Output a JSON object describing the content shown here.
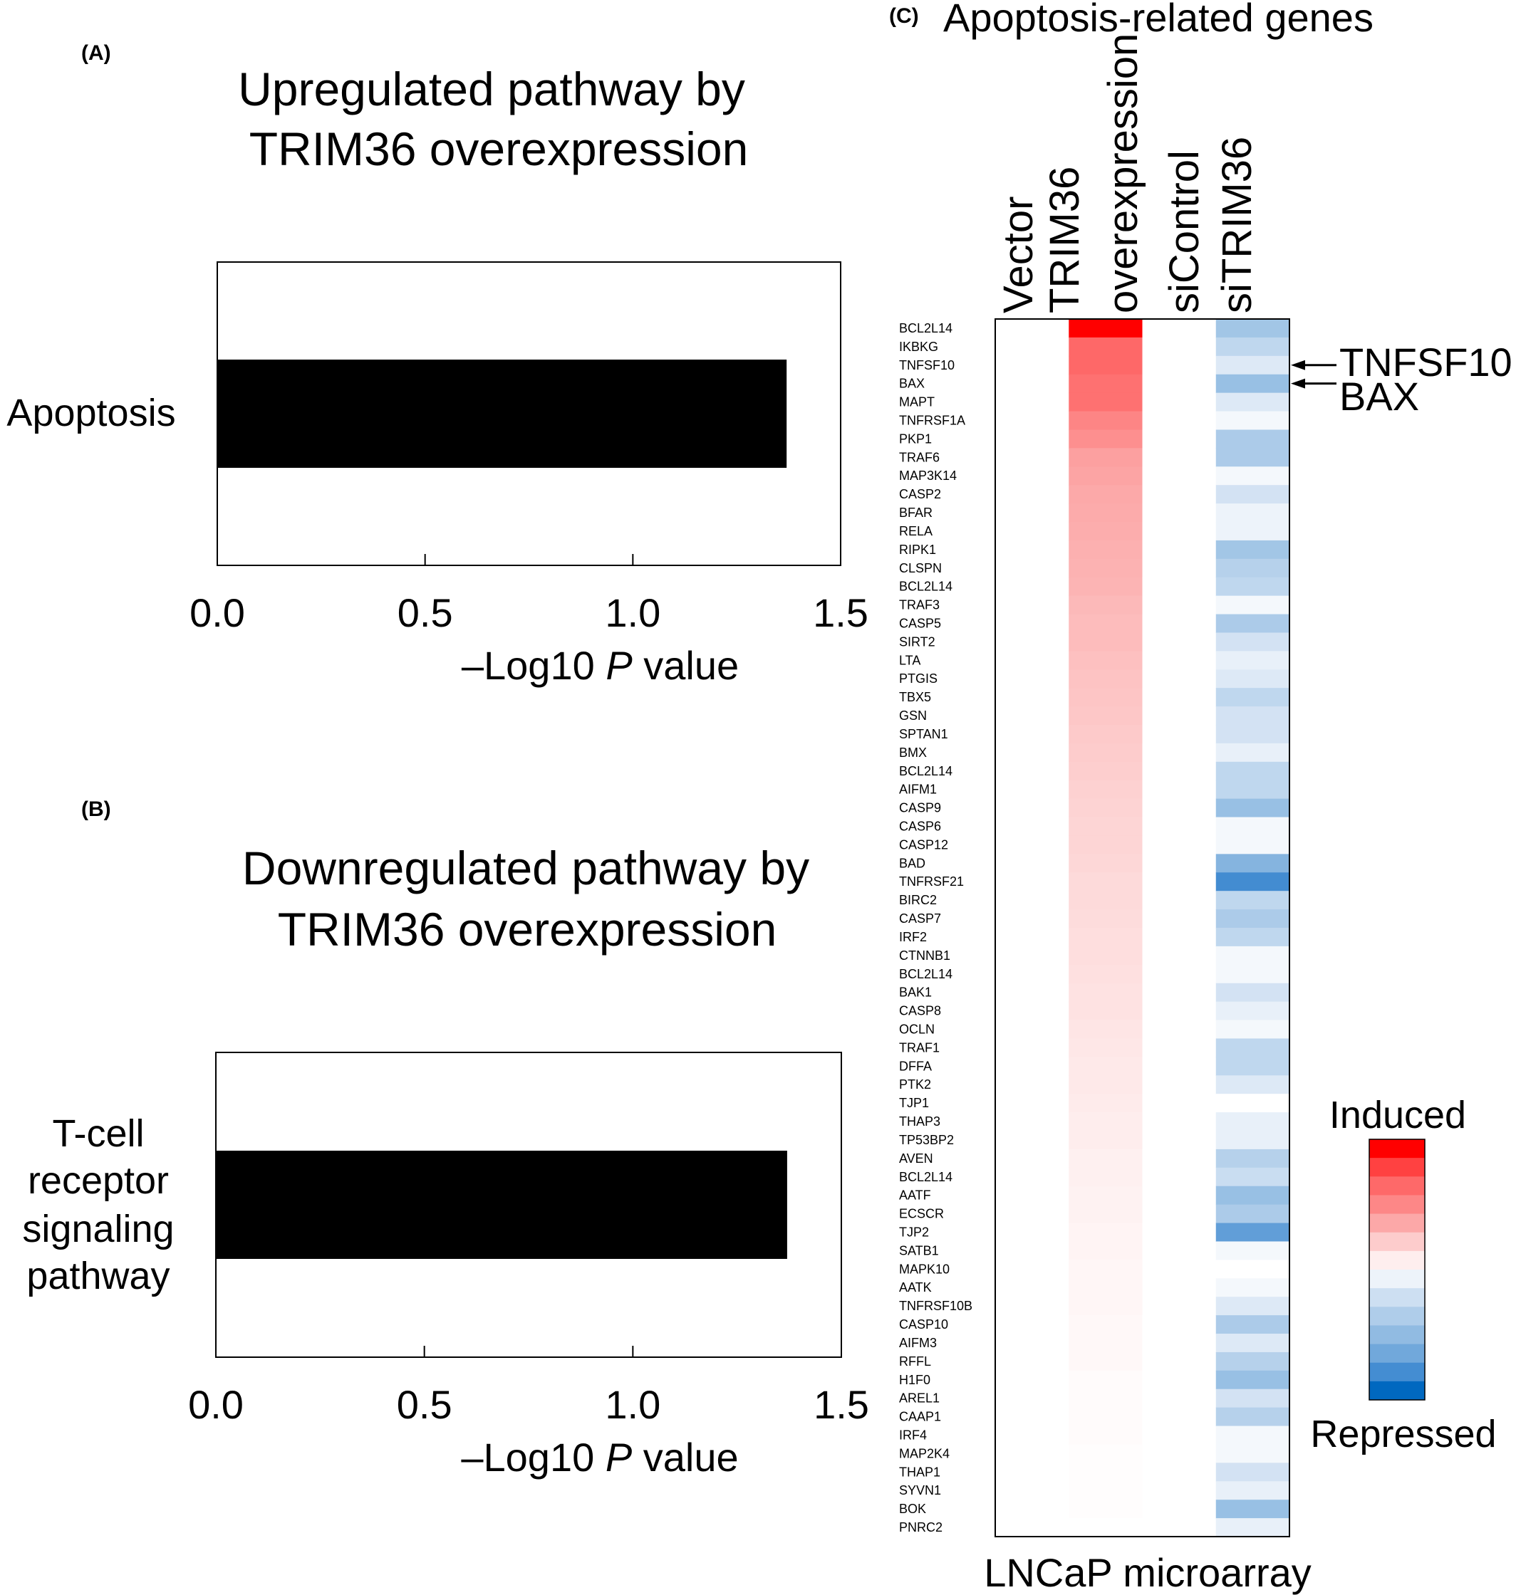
{
  "panels": {
    "A": {
      "letter": "(A)",
      "title_lines": [
        "Upregulated pathway by",
        "TRIM36 overexpression"
      ],
      "category_lines": [
        "Apoptosis"
      ]
    },
    "B": {
      "letter": "(B)",
      "title_lines": [
        "Downregulated pathway by",
        "TRIM36 overexpression"
      ],
      "category_lines": [
        "T-cell",
        "receptor",
        "signaling",
        "pathway"
      ]
    },
    "C": {
      "letter": "(C)",
      "title": "Apoptosis-related  genes",
      "footer": "LNCaP microarray",
      "annotations": [
        {
          "label": "TNFSF10",
          "gene_index": 2
        },
        {
          "label": "BAX",
          "gene_index": 3
        }
      ],
      "legend": {
        "top": "Induced",
        "bottom": "Repressed"
      }
    }
  },
  "xlabel_parts": {
    "prefix": "–Log10 ",
    "italic": "P",
    "suffix": " value"
  },
  "chart_data": [
    {
      "type": "bar",
      "orientation": "horizontal",
      "panel": "A",
      "categories": [
        "Apoptosis"
      ],
      "values": [
        1.37
      ],
      "xlabel": "–Log10 P value",
      "xlim": [
        0,
        1.5
      ],
      "xticks": [
        "0.0",
        "0.5",
        "1.0",
        "1.5"
      ],
      "bar_color": "#000000",
      "grid": false
    },
    {
      "type": "bar",
      "orientation": "horizontal",
      "panel": "B",
      "categories": [
        "T-cell receptor signaling pathway"
      ],
      "values": [
        1.37
      ],
      "xlabel": "–Log10 P value",
      "xlim": [
        0,
        1.5
      ],
      "xticks": [
        "0.0",
        "0.5",
        "1.0",
        "1.5"
      ],
      "bar_color": "#000000",
      "grid": false
    },
    {
      "type": "heatmap",
      "panel": "C",
      "columns": [
        "Vector",
        "TRIM36 overexpression",
        "siControl",
        "siTRIM36"
      ],
      "genes": [
        "BCL2L14",
        "IKBKG",
        "TNFSF10",
        "BAX",
        "MAPT",
        "TNFRSF1A",
        "PKP1",
        "TRAF6",
        "MAP3K14",
        "CASP2",
        "BFAR",
        "RELA",
        "RIPK1",
        "CLSPN",
        "BCL2L14",
        "TRAF3",
        "CASP5",
        "SIRT2",
        "LTA",
        "PTGIS",
        "TBX5",
        "GSN",
        "SPTAN1",
        "BMX",
        "BCL2L14",
        "AIFM1",
        "CASP9",
        "CASP6",
        "CASP12",
        "BAD",
        "TNFRSF21",
        "BIRC2",
        "CASP7",
        "IRF2",
        "CTNNB1",
        "BCL2L14",
        "BAK1",
        "CASP8",
        "OCLN",
        "TRAF1",
        "DFFA",
        "PTK2",
        "TJP1",
        "THAP3",
        "TP53BP2",
        "AVEN",
        "BCL2L14",
        "AATF",
        "ECSCR",
        "TJP2",
        "SATB1",
        "MAPK10",
        "AATK",
        "TNFRSF10B",
        "CASP10",
        "AIFM3",
        "RFFL",
        "H1F0",
        "AREL1",
        "CAAP1",
        "IRF4",
        "MAP2K4",
        "THAP1",
        "SYVN1",
        "BOK",
        "PNRC2"
      ],
      "values_by_column": [
        [
          0,
          0,
          0,
          0,
          0,
          0,
          0,
          0,
          0,
          0,
          0,
          0,
          0,
          0,
          0,
          0,
          0,
          0,
          0,
          0,
          0,
          0,
          0,
          0,
          0,
          0,
          0,
          0,
          0,
          0,
          0,
          0,
          0,
          0,
          0,
          0,
          0,
          0,
          0,
          0,
          0,
          0,
          0,
          0,
          0,
          0,
          0,
          0,
          0,
          0,
          0,
          0,
          0,
          0,
          0,
          0,
          0,
          0,
          0,
          0,
          0,
          0,
          0,
          0,
          0,
          0
        ],
        [
          1.0,
          0.7,
          0.7,
          0.65,
          0.65,
          0.55,
          0.5,
          0.42,
          0.4,
          0.38,
          0.37,
          0.36,
          0.35,
          0.34,
          0.33,
          0.31,
          0.3,
          0.3,
          0.28,
          0.27,
          0.26,
          0.25,
          0.24,
          0.23,
          0.22,
          0.21,
          0.2,
          0.19,
          0.19,
          0.18,
          0.17,
          0.17,
          0.16,
          0.15,
          0.15,
          0.14,
          0.13,
          0.13,
          0.12,
          0.11,
          0.1,
          0.1,
          0.09,
          0.08,
          0.08,
          0.07,
          0.07,
          0.06,
          0.06,
          0.05,
          0.05,
          0.04,
          0.04,
          0.04,
          0.03,
          0.03,
          0.03,
          0.02,
          0.02,
          0.02,
          0.02,
          0.01,
          0.01,
          0.01,
          0.01,
          0
        ],
        [
          0,
          0,
          0,
          0,
          0,
          0,
          0,
          0,
          0,
          0,
          0,
          0,
          0,
          0,
          0,
          0,
          0,
          0,
          0,
          0,
          0,
          0,
          0,
          0,
          0,
          0,
          0,
          0,
          0,
          0,
          0,
          0,
          0,
          0,
          0,
          0,
          0,
          0,
          0,
          0,
          0,
          0,
          0,
          0,
          0,
          0,
          0,
          0,
          0,
          0,
          0,
          0,
          0,
          0,
          0,
          0,
          0,
          0,
          0,
          0,
          0,
          0,
          0,
          0,
          0,
          0
        ],
        [
          -0.45,
          -0.3,
          -0.15,
          -0.5,
          -0.15,
          -0.05,
          -0.4,
          -0.4,
          -0.05,
          -0.2,
          -0.08,
          -0.08,
          -0.45,
          -0.35,
          -0.3,
          -0.05,
          -0.4,
          -0.2,
          -0.1,
          -0.15,
          -0.3,
          -0.2,
          -0.2,
          -0.1,
          -0.3,
          -0.3,
          -0.5,
          -0.05,
          -0.05,
          -0.6,
          -0.85,
          -0.3,
          -0.4,
          -0.3,
          -0.05,
          -0.05,
          -0.2,
          -0.1,
          -0.05,
          -0.3,
          -0.3,
          -0.15,
          0,
          -0.1,
          -0.1,
          -0.35,
          -0.25,
          -0.5,
          -0.4,
          -0.75,
          -0.05,
          0,
          -0.05,
          -0.15,
          -0.4,
          -0.15,
          -0.35,
          -0.5,
          -0.2,
          -0.35,
          -0.05,
          -0.05,
          -0.2,
          -0.1,
          -0.5,
          -0.1
        ]
      ],
      "color_scale": {
        "induced_colors": [
          "#ffffff",
          "#fdd3d3",
          "#fca4a4",
          "#fd7a7a",
          "#ff5555",
          "#ff0000"
        ],
        "repressed_colors": [
          "#ffffff",
          "#d9e6f5",
          "#b9d3ec",
          "#98c0e4",
          "#78acdc",
          "#4a90d3",
          "#0068c0"
        ]
      }
    }
  ]
}
